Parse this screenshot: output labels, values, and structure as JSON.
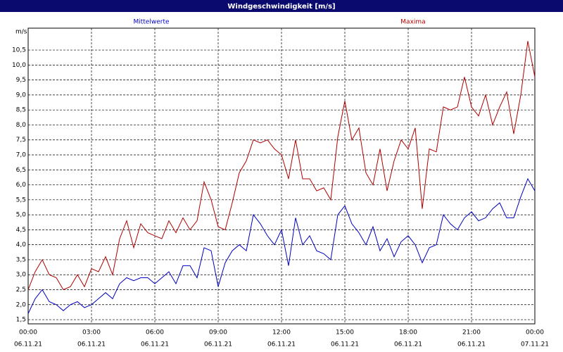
{
  "chart_data": {
    "type": "line",
    "title": "Windgeschwindigkeit [m/s]",
    "ylabel": "m/s",
    "x": [
      0,
      20,
      40,
      60,
      80,
      100,
      120,
      140,
      160,
      180,
      200,
      220,
      240,
      260,
      280,
      300,
      320,
      340,
      360,
      380,
      400,
      420,
      440,
      460,
      480,
      500,
      520,
      540,
      560,
      580,
      600,
      620,
      640,
      660,
      680,
      700,
      720,
      740,
      760,
      780,
      800,
      820,
      840,
      860,
      880,
      900,
      920,
      940,
      960,
      980,
      1000,
      1020,
      1040,
      1060,
      1080,
      1100,
      1120,
      1140,
      1160,
      1180,
      1200,
      1220,
      1240,
      1260,
      1280,
      1300,
      1320,
      1340,
      1360,
      1380,
      1400,
      1420,
      1440
    ],
    "series": [
      {
        "name": "Mittelwerte",
        "color": "#0000c0",
        "values": [
          1.7,
          2.2,
          2.5,
          2.1,
          2.0,
          1.8,
          2.0,
          2.1,
          1.9,
          2.0,
          2.2,
          2.4,
          2.2,
          2.7,
          2.9,
          2.8,
          2.9,
          2.9,
          2.7,
          2.9,
          3.1,
          2.7,
          3.3,
          3.3,
          2.9,
          3.9,
          3.8,
          2.6,
          3.4,
          3.8,
          4.0,
          3.8,
          5.0,
          4.7,
          4.3,
          4.0,
          4.5,
          3.3,
          4.9,
          4.0,
          4.3,
          3.8,
          3.7,
          3.5,
          5.0,
          5.3,
          4.7,
          4.4,
          4.0,
          4.6,
          3.8,
          4.2,
          3.6,
          4.1,
          4.3,
          4.0,
          3.4,
          3.9,
          4.0,
          5.0,
          4.7,
          4.5,
          4.9,
          5.1,
          4.8,
          4.9,
          5.2,
          5.4,
          4.9,
          4.9,
          5.6,
          6.2,
          5.8
        ]
      },
      {
        "name": "Maxima",
        "color": "#b00000",
        "values": [
          2.5,
          3.1,
          3.5,
          3.0,
          2.9,
          2.5,
          2.6,
          3.0,
          2.6,
          3.2,
          3.1,
          3.6,
          3.0,
          4.2,
          4.8,
          3.9,
          4.7,
          4.4,
          4.3,
          4.2,
          4.8,
          4.4,
          4.9,
          4.5,
          4.8,
          6.1,
          5.5,
          4.6,
          4.5,
          5.4,
          6.4,
          6.8,
          7.5,
          7.4,
          7.5,
          7.2,
          7.0,
          6.2,
          7.5,
          6.2,
          6.2,
          5.8,
          5.9,
          5.5,
          7.6,
          8.8,
          7.5,
          7.9,
          6.4,
          6.0,
          7.2,
          5.8,
          6.8,
          7.5,
          7.2,
          7.9,
          5.2,
          7.2,
          7.1,
          8.6,
          8.5,
          8.6,
          9.6,
          8.6,
          8.3,
          9.0,
          8.0,
          8.6,
          9.1,
          7.7,
          9.0,
          10.8,
          9.6
        ]
      }
    ],
    "xlim": [
      0,
      1440
    ],
    "xticks": [
      {
        "value": 0,
        "label": "00:00",
        "date": "06.11.21"
      },
      {
        "value": 180,
        "label": "03:00",
        "date": "06.11.21"
      },
      {
        "value": 360,
        "label": "06:00",
        "date": "06.11.21"
      },
      {
        "value": 540,
        "label": "09:00",
        "date": "06.11.21"
      },
      {
        "value": 720,
        "label": "12:00",
        "date": "06.11.21"
      },
      {
        "value": 900,
        "label": "15:00",
        "date": "06.11.21"
      },
      {
        "value": 1080,
        "label": "18:00",
        "date": "06.11.21"
      },
      {
        "value": 1260,
        "label": "21:00",
        "date": "06.11.21"
      },
      {
        "value": 1440,
        "label": "00:00",
        "date": "07.11.21"
      }
    ],
    "ylim": [
      1.36,
      11.23
    ],
    "yticks": [
      {
        "value": 1.5,
        "label": "1,5"
      },
      {
        "value": 2,
        "label": "2,0"
      },
      {
        "value": 2.5,
        "label": "2,5"
      },
      {
        "value": 3,
        "label": "3,0"
      },
      {
        "value": 3.5,
        "label": "3,5"
      },
      {
        "value": 4,
        "label": "4,0"
      },
      {
        "value": 4.5,
        "label": "4,5"
      },
      {
        "value": 5,
        "label": "5,0"
      },
      {
        "value": 5.5,
        "label": "5,5"
      },
      {
        "value": 6,
        "label": "6,0"
      },
      {
        "value": 6.5,
        "label": "6,5"
      },
      {
        "value": 7,
        "label": "7,0"
      },
      {
        "value": 7.5,
        "label": "7,5"
      },
      {
        "value": 8,
        "label": "8,0"
      },
      {
        "value": 8.5,
        "label": "8,5"
      },
      {
        "value": 9,
        "label": "9,0"
      },
      {
        "value": 9.5,
        "label": "9,5"
      },
      {
        "value": 10,
        "label": "10,0"
      },
      {
        "value": 10.5,
        "label": "10,5"
      }
    ],
    "grid": true
  }
}
